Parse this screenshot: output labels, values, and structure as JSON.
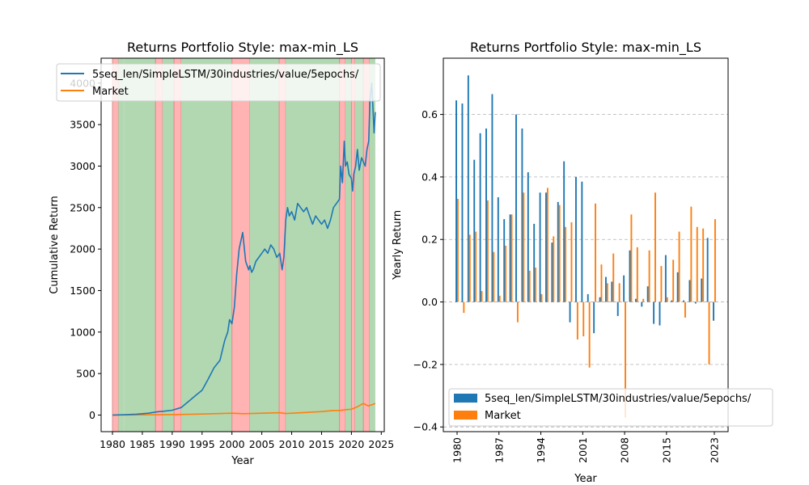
{
  "chart_data": [
    {
      "type": "line",
      "title": "Returns Portfolio Style: max-min_LS",
      "xlabel": "Year",
      "ylabel": "Cumulative Return",
      "xlim": [
        1978.1,
        2025.5
      ],
      "ylim": [
        -200,
        4300
      ],
      "xticks": [
        1980,
        1985,
        1990,
        1995,
        2000,
        2005,
        2010,
        2015,
        2020,
        2025
      ],
      "yticks": [
        0,
        500,
        1000,
        1500,
        2000,
        2500,
        3000,
        3500,
        4000
      ],
      "legend": "upper-left",
      "regimes": [
        {
          "start": 1980.0,
          "end": 1981.0,
          "kind": "red"
        },
        {
          "start": 1981.0,
          "end": 1982.0,
          "kind": "green"
        },
        {
          "start": 1982.0,
          "end": 1987.2,
          "kind": "green"
        },
        {
          "start": 1987.2,
          "end": 1988.4,
          "kind": "red"
        },
        {
          "start": 1988.4,
          "end": 1990.3,
          "kind": "green"
        },
        {
          "start": 1990.3,
          "end": 1991.5,
          "kind": "red"
        },
        {
          "start": 1991.5,
          "end": 2000.0,
          "kind": "green"
        },
        {
          "start": 2000.0,
          "end": 2003.0,
          "kind": "red"
        },
        {
          "start": 2003.0,
          "end": 2007.9,
          "kind": "green"
        },
        {
          "start": 2007.9,
          "end": 2009.0,
          "kind": "red"
        },
        {
          "start": 2009.0,
          "end": 2018.0,
          "kind": "green"
        },
        {
          "start": 2018.0,
          "end": 2019.0,
          "kind": "red"
        },
        {
          "start": 2019.0,
          "end": 2020.0,
          "kind": "green"
        },
        {
          "start": 2020.0,
          "end": 2020.6,
          "kind": "red"
        },
        {
          "start": 2020.6,
          "end": 2022.0,
          "kind": "green"
        },
        {
          "start": 2022.0,
          "end": 2023.0,
          "kind": "red"
        },
        {
          "start": 2023.0,
          "end": 2024.0,
          "kind": "green"
        }
      ],
      "series": [
        {
          "name": "5seq_len/SimpleLSTM/30industries/value/5epochs/",
          "color": "#1f77b4",
          "x": [
            1980.0,
            1982.0,
            1984.0,
            1986.0,
            1987.5,
            1988.5,
            1990.0,
            1991.5,
            1993.0,
            1994.0,
            1995.0,
            1996.0,
            1997.0,
            1998.0,
            1998.8,
            1999.3,
            1999.6,
            2000.0,
            2000.4,
            2000.8,
            2001.2,
            2001.8,
            2002.3,
            2002.8,
            2003.0,
            2003.3,
            2003.6,
            2004.0,
            2004.5,
            2005.0,
            2005.5,
            2006.0,
            2006.5,
            2007.0,
            2007.5,
            2008.0,
            2008.4,
            2008.7,
            2009.0,
            2009.3,
            2009.6,
            2010.0,
            2010.5,
            2011.0,
            2011.5,
            2012.0,
            2012.5,
            2013.0,
            2013.5,
            2014.0,
            2014.5,
            2015.0,
            2015.5,
            2016.0,
            2016.5,
            2017.0,
            2017.5,
            2018.0,
            2018.2,
            2018.5,
            2018.8,
            2019.0,
            2019.3,
            2019.6,
            2020.0,
            2020.2,
            2020.4,
            2020.7,
            2021.0,
            2021.3,
            2021.7,
            2022.0,
            2022.3,
            2022.6,
            2022.9,
            2023.1,
            2023.4,
            2023.6,
            2023.8,
            2024.0
          ],
          "y": [
            0,
            4,
            10,
            22,
            40,
            45,
            58,
            90,
            180,
            240,
            300,
            430,
            570,
            660,
            900,
            1000,
            1150,
            1100,
            1300,
            1700,
            2000,
            2200,
            1850,
            1750,
            1800,
            1720,
            1760,
            1850,
            1900,
            1950,
            2000,
            1950,
            2050,
            2000,
            1900,
            1950,
            1750,
            1900,
            2350,
            2500,
            2400,
            2450,
            2350,
            2550,
            2500,
            2450,
            2500,
            2400,
            2300,
            2400,
            2350,
            2300,
            2350,
            2250,
            2350,
            2500,
            2550,
            2600,
            3000,
            2800,
            3300,
            3000,
            3050,
            2900,
            2850,
            2700,
            2900,
            3000,
            3200,
            2950,
            3100,
            3050,
            3000,
            3200,
            3300,
            3800,
            4000,
            3700,
            3400,
            3650
          ]
        },
        {
          "name": "Market",
          "color": "#ff7f0e",
          "x": [
            1980,
            1985,
            1990,
            1995,
            2000,
            2002,
            2005,
            2008,
            2009,
            2012,
            2015,
            2017,
            2018,
            2019,
            2020,
            2021,
            2022,
            2022.8,
            2023.5,
            2024
          ],
          "y": [
            1,
            3,
            6,
            12,
            22,
            16,
            22,
            28,
            18,
            30,
            42,
            55,
            55,
            65,
            70,
            100,
            140,
            110,
            125,
            140
          ]
        }
      ]
    },
    {
      "type": "bar",
      "title": "Returns Portfolio Style: max-min_LS",
      "xlabel": "Year",
      "ylabel": "Yearly Return",
      "ylim": [
        -0.415,
        0.78
      ],
      "yticks": [
        -0.4,
        -0.2,
        0.0,
        0.2,
        0.4,
        0.6
      ],
      "ytick_labels": [
        "−0.4",
        "−0.2",
        "0.0",
        "0.2",
        "0.4",
        "0.6"
      ],
      "xticks": [
        1980,
        1987,
        1994,
        2001,
        2008,
        2015,
        2023
      ],
      "grid": "horizontal",
      "legend": "lower-right",
      "categories": [
        1980,
        1981,
        1982,
        1983,
        1984,
        1985,
        1986,
        1987,
        1988,
        1989,
        1990,
        1991,
        1992,
        1993,
        1994,
        1995,
        1996,
        1997,
        1998,
        1999,
        2000,
        2001,
        2002,
        2003,
        2004,
        2005,
        2006,
        2007,
        2008,
        2009,
        2010,
        2011,
        2012,
        2013,
        2014,
        2015,
        2016,
        2017,
        2018,
        2019,
        2020,
        2021,
        2022,
        2023
      ],
      "series": [
        {
          "name": "5seq_len/SimpleLSTM/30industries/value/5epochs/",
          "color": "#1f77b4",
          "values": [
            0.645,
            0.635,
            0.725,
            0.455,
            0.54,
            0.555,
            0.665,
            0.335,
            0.265,
            0.28,
            0.6,
            0.555,
            0.415,
            0.25,
            0.35,
            0.35,
            0.19,
            0.32,
            0.45,
            -0.065,
            0.4,
            0.385,
            0.025,
            -0.1,
            0.015,
            0.08,
            0.065,
            -0.045,
            0.085,
            0.165,
            0.01,
            -0.015,
            0.05,
            -0.07,
            -0.075,
            0.15,
            0.005,
            0.095,
            0.005,
            0.07,
            -0.005,
            0.075,
            0.205,
            -0.06
          ]
        },
        {
          "name": "Market",
          "color": "#ff7f0e",
          "values": [
            0.33,
            -0.035,
            0.215,
            0.225,
            0.035,
            0.325,
            0.16,
            0.02,
            0.18,
            0.28,
            -0.065,
            0.35,
            0.1,
            0.11,
            0.025,
            0.365,
            0.21,
            0.31,
            0.24,
            0.255,
            -0.12,
            -0.11,
            -0.21,
            0.315,
            0.12,
            0.06,
            0.155,
            0.06,
            -0.37,
            0.28,
            0.175,
            0.01,
            0.165,
            0.35,
            0.115,
            0.015,
            0.135,
            0.225,
            -0.05,
            0.305,
            0.24,
            0.235,
            -0.2,
            0.265
          ]
        }
      ]
    }
  ]
}
